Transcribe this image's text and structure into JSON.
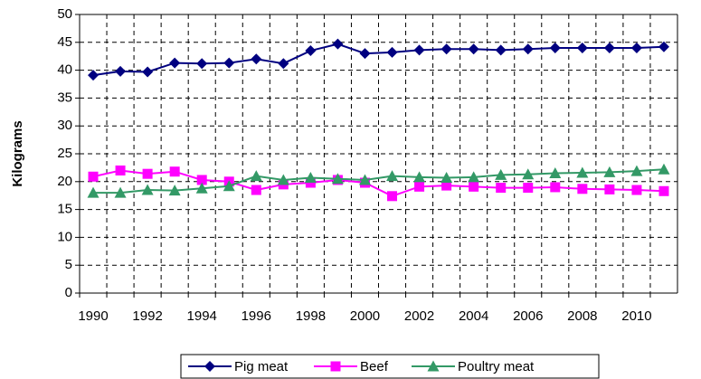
{
  "chart_data": {
    "type": "line",
    "y_label": "Kilograms",
    "categories": [
      "1990",
      null,
      "1992",
      null,
      "1994",
      null,
      "1996",
      null,
      "1998",
      null,
      "2000",
      null,
      "2002",
      null,
      "2004",
      null,
      "2006",
      null,
      "2008",
      null,
      "2010",
      null
    ],
    "series": [
      {
        "name": "Pig meat",
        "color": "#000080",
        "marker": "diamond",
        "values": [
          39.1,
          39.8,
          39.7,
          41.3,
          41.2,
          41.3,
          42.0,
          41.2,
          43.5,
          44.7,
          43.0,
          43.2,
          43.6,
          43.8,
          43.8,
          43.6,
          43.8,
          44.0,
          44.0,
          44.0,
          44.0,
          44.2
        ]
      },
      {
        "name": "Beef",
        "color": "#FF00FF",
        "marker": "square",
        "values": [
          20.9,
          22.0,
          21.4,
          21.8,
          20.3,
          20.0,
          18.5,
          19.5,
          19.8,
          20.3,
          19.8,
          17.4,
          19.1,
          19.3,
          19.1,
          18.9,
          18.9,
          19.0,
          18.7,
          18.6,
          18.5,
          18.3
        ]
      },
      {
        "name": "Poultry meat",
        "color": "#339966",
        "marker": "triangle",
        "values": [
          18.0,
          18.0,
          18.5,
          18.4,
          18.8,
          19.2,
          21.0,
          20.3,
          20.7,
          20.5,
          20.3,
          21.0,
          20.8,
          20.7,
          20.8,
          21.2,
          21.3,
          21.5,
          21.6,
          21.7,
          21.9,
          22.2
        ]
      }
    ],
    "ylim": [
      0,
      50
    ],
    "yticks": [
      0,
      5,
      10,
      15,
      20,
      25,
      30,
      35,
      40,
      45,
      50
    ],
    "grid": true,
    "legend": "bottom"
  }
}
